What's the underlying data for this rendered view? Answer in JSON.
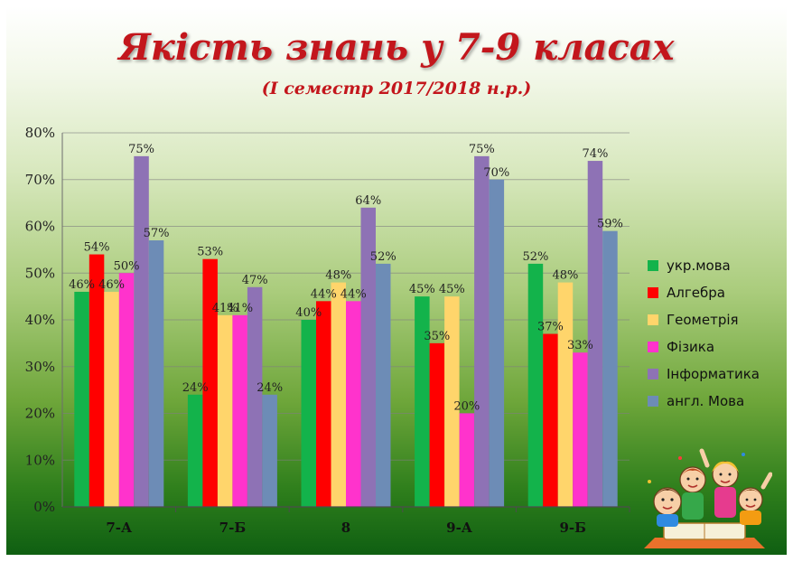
{
  "title": "Якість знань у 7-9 класах",
  "subtitle": "(І семестр 2017/2018 н.р.)",
  "chart_data": {
    "type": "bar",
    "title": "Якість знань у 7-9 класах",
    "subtitle": "(І семестр 2017/2018 н.р.)",
    "categories": [
      "7-А",
      "7-Б",
      "8",
      "9-А",
      "9-Б"
    ],
    "series": [
      {
        "name": "укр.мова",
        "color": "#13b34b",
        "values": [
          46,
          24,
          40,
          45,
          52
        ],
        "labels": [
          "46%",
          "24%",
          "40%",
          "45%",
          "52%"
        ]
      },
      {
        "name": "Алгебра",
        "color": "#ff0000",
        "values": [
          54,
          53,
          44,
          35,
          37
        ],
        "labels": [
          "54%",
          "53%",
          "44%",
          "35%",
          "37%"
        ]
      },
      {
        "name": "Геометрія",
        "color": "#ffd56b",
        "values": [
          46,
          41,
          48,
          45,
          48
        ],
        "labels": [
          "46%",
          "41%",
          "48%",
          "45%",
          "48%"
        ]
      },
      {
        "name": "Фізика",
        "color": "#ff33cc",
        "values": [
          50,
          41,
          44,
          20,
          33
        ],
        "labels": [
          "50%",
          "41%",
          "44%",
          "20%",
          "33%"
        ]
      },
      {
        "name": "Інформатика",
        "color": "#8e72b5",
        "values": [
          75,
          47,
          64,
          75,
          74
        ],
        "labels": [
          "75%",
          "47%",
          "64%",
          "75%",
          "74%"
        ]
      },
      {
        "name": "англ. Мова",
        "color": "#6d8cb6",
        "values": [
          57,
          24,
          52,
          70,
          59
        ],
        "labels": [
          "57%",
          "24%",
          "52%",
          "70%",
          "59%"
        ]
      }
    ],
    "ylim": [
      0,
      80
    ],
    "yticks": [
      "0%",
      "10%",
      "20%",
      "30%",
      "40%",
      "50%",
      "60%",
      "70%",
      "80%"
    ],
    "xlabel": "",
    "ylabel": "",
    "grid": true,
    "legend": "right"
  },
  "icons": {
    "illustration": "children-studying-clipart"
  }
}
